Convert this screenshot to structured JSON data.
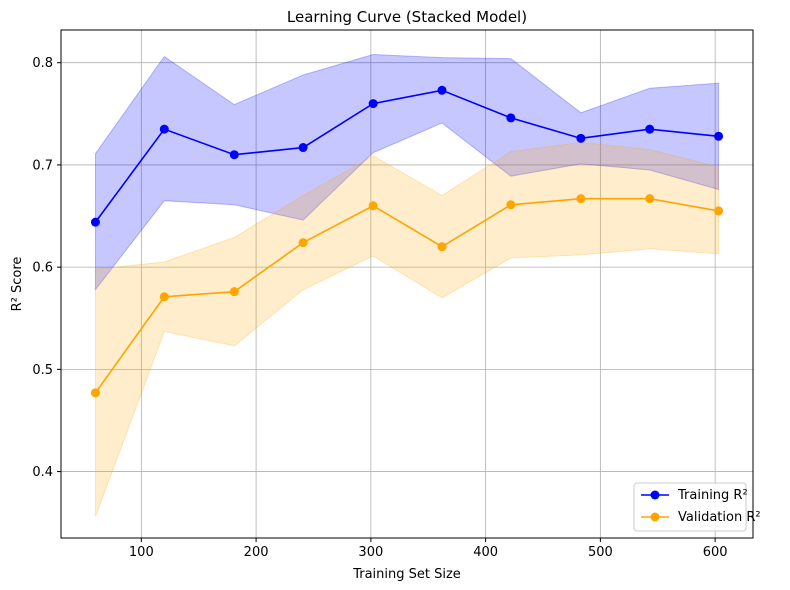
{
  "chart_data": {
    "type": "line",
    "title": "Learning Curve (Stacked Model)",
    "xlabel": "Training Set Size",
    "ylabel": "R² Score",
    "xlim": [
      30,
      633
    ],
    "ylim": [
      0.335,
      0.832
    ],
    "xticks": [
      100,
      200,
      300,
      400,
      500,
      600
    ],
    "yticks": [
      0.4,
      0.5,
      0.6,
      0.7,
      0.8
    ],
    "grid": true,
    "legend_position": "bottom-right",
    "x": [
      60,
      120,
      181,
      241,
      302,
      362,
      422,
      483,
      543,
      603
    ],
    "series": [
      {
        "name": "Training R²",
        "color": "#0000ff",
        "band_color": "#0000ff",
        "values": [
          0.644,
          0.735,
          0.71,
          0.717,
          0.76,
          0.773,
          0.746,
          0.726,
          0.735,
          0.728
        ],
        "upper": [
          0.711,
          0.806,
          0.759,
          0.788,
          0.808,
          0.805,
          0.804,
          0.751,
          0.775,
          0.78
        ],
        "lower": [
          0.578,
          0.665,
          0.661,
          0.646,
          0.712,
          0.741,
          0.689,
          0.701,
          0.695,
          0.676
        ]
      },
      {
        "name": "Validation R²",
        "color": "#ffa500",
        "band_color": "#ffa500",
        "values": [
          0.477,
          0.571,
          0.576,
          0.624,
          0.66,
          0.62,
          0.661,
          0.667,
          0.667,
          0.655
        ],
        "upper": [
          0.598,
          0.605,
          0.629,
          0.67,
          0.709,
          0.67,
          0.713,
          0.722,
          0.715,
          0.698
        ],
        "lower": [
          0.356,
          0.537,
          0.523,
          0.578,
          0.611,
          0.57,
          0.609,
          0.612,
          0.618,
          0.613
        ]
      }
    ]
  }
}
